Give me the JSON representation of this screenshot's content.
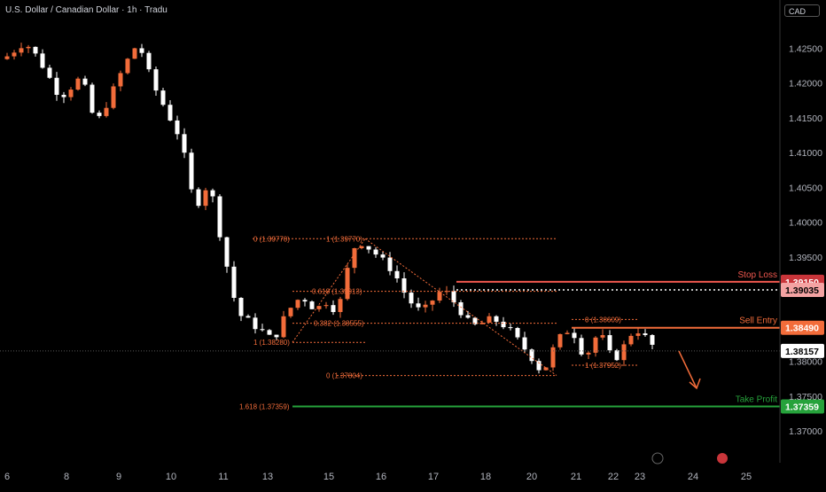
{
  "chart_title": "U.S. Dollar / Canadian Dollar · 1h · Tradu",
  "currency": "CAD",
  "colors": {
    "background": "#000000",
    "up": "#f26c3a",
    "down": "#ffffff",
    "fib": "#f26c3a",
    "stop_loss": "#f0584f",
    "entry": "#f26c3a",
    "take_profit": "#26a23b",
    "current": "#ffffff"
  },
  "chart_data": {
    "type": "candlestick",
    "ylim": [
      1.3655,
      1.4292
    ],
    "x_ticks": [
      "6",
      "8",
      "9",
      "10",
      "11",
      "13",
      "15",
      "16",
      "17",
      "18",
      "20",
      "21",
      "22",
      "23",
      "24",
      "25"
    ],
    "y_ticks": [
      "1.42500",
      "1.42000",
      "1.41500",
      "1.41000",
      "1.40500",
      "1.40000",
      "1.39500",
      "1.38000",
      "1.37500",
      "1.37000"
    ],
    "price_path": [
      [
        0,
        1.4235
      ],
      [
        3,
        1.426
      ],
      [
        5,
        1.4235
      ],
      [
        8,
        1.418
      ],
      [
        11,
        1.421
      ],
      [
        13,
        1.414
      ],
      [
        15,
        1.418
      ],
      [
        17,
        1.4225
      ],
      [
        19,
        1.426
      ],
      [
        21,
        1.42
      ],
      [
        23,
        1.416
      ],
      [
        25,
        1.412
      ],
      [
        27,
        1.402
      ],
      [
        29,
        1.406
      ],
      [
        31,
        1.396
      ],
      [
        33,
        1.387
      ],
      [
        35,
        1.3855
      ],
      [
        37,
        1.384
      ],
      [
        38,
        1.383
      ],
      [
        40,
        1.3872
      ],
      [
        42,
        1.3895
      ],
      [
        44,
        1.3875
      ],
      [
        46,
        1.389
      ],
      [
        47,
        1.3865
      ],
      [
        49,
        1.3955
      ],
      [
        50,
        1.3975
      ],
      [
        52,
        1.396
      ],
      [
        55,
        1.393
      ],
      [
        57,
        1.389
      ],
      [
        59,
        1.387
      ],
      [
        61,
        1.3895
      ],
      [
        62,
        1.3905
      ],
      [
        64,
        1.388
      ],
      [
        66,
        1.385
      ],
      [
        69,
        1.3862
      ],
      [
        71,
        1.385
      ],
      [
        73,
        1.3825
      ],
      [
        75,
        1.38
      ],
      [
        76,
        1.3782
      ],
      [
        78,
        1.383
      ],
      [
        80,
        1.385
      ],
      [
        82,
        1.3805
      ],
      [
        84,
        1.3845
      ],
      [
        86,
        1.38
      ],
      [
        88,
        1.383
      ],
      [
        89,
        1.385
      ],
      [
        91,
        1.383
      ],
      [
        92,
        1.3817
      ]
    ],
    "fib_left": {
      "levels": [
        {
          "label": "0 (1.39770)",
          "price": 1.3977
        },
        {
          "label": "1 (1.39770)",
          "price": 1.3977
        },
        {
          "label": "0.618 (1.39013)",
          "price": 1.39013
        },
        {
          "label": "0.382 (1.38555)",
          "price": 1.38555
        },
        {
          "label": "1 (1.38280)",
          "price": 1.3828
        }
      ]
    },
    "fib_right": {
      "levels": [
        {
          "label": "0 (1.37804)",
          "price": 1.37804
        },
        {
          "label": "1.618 (1.37359)",
          "price": 1.37359
        },
        {
          "label": "0 (1.38609)",
          "price": 1.38609
        },
        {
          "label": "1 (1.37952)",
          "price": 1.37952
        }
      ]
    },
    "trade_levels": {
      "stop_loss": {
        "label": "Stop Loss",
        "price": 1.3915,
        "tag": "1.39150"
      },
      "stop_loss_alt": {
        "tag": "1.39035",
        "price": 1.39035
      },
      "entry": {
        "label": "Sell Entry",
        "price": 1.3849,
        "tag": "1.38490"
      },
      "take_profit": {
        "label": "Take Profit",
        "price": 1.37359,
        "tag": "1.37359"
      },
      "current": {
        "tag": "1.38157",
        "price": 1.38157
      }
    }
  }
}
